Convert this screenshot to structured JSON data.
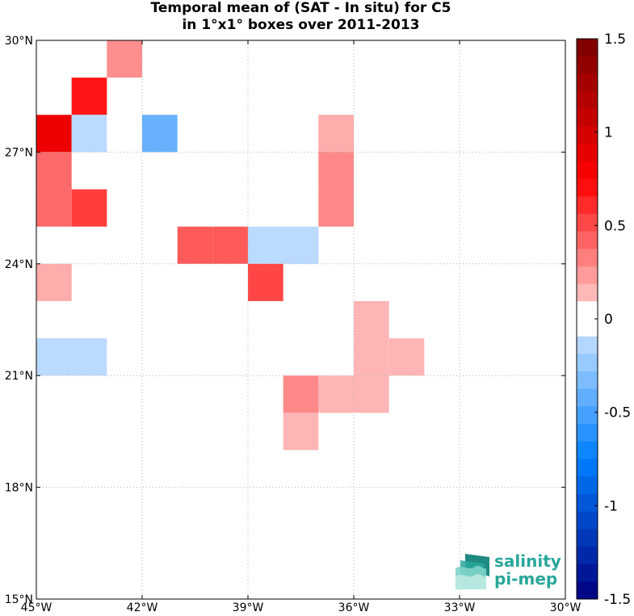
{
  "title": {
    "line1": "Temporal mean of (SAT - In situ) for C5",
    "line2": "in 1°x1° boxes over 2011-2013"
  },
  "logo": {
    "line1": "salinity",
    "line2": "pi-mep",
    "color": "#2aa79b"
  },
  "chart_data": {
    "type": "heatmap",
    "title": "Temporal mean of (SAT - In situ) for C5 in 1°x1° boxes over 2011-2013",
    "xlabel": "",
    "ylabel": "",
    "xlim": [
      -45,
      -30
    ],
    "ylim": [
      15,
      30
    ],
    "x_ticks": [
      {
        "value": -45,
        "label": "45°W"
      },
      {
        "value": -42,
        "label": "42°W"
      },
      {
        "value": -39,
        "label": "39°W"
      },
      {
        "value": -36,
        "label": "36°W"
      },
      {
        "value": -33,
        "label": "33°W"
      },
      {
        "value": -30,
        "label": "30°W"
      }
    ],
    "y_ticks": [
      {
        "value": 15,
        "label": "15°N"
      },
      {
        "value": 18,
        "label": "18°N"
      },
      {
        "value": 21,
        "label": "21°N"
      },
      {
        "value": 24,
        "label": "24°N"
      },
      {
        "value": 27,
        "label": "27°N"
      },
      {
        "value": 30,
        "label": "30°N"
      }
    ],
    "grid": true,
    "colorbar": {
      "range": [
        -1.5,
        1.5
      ],
      "levels": 32,
      "ticks": [
        {
          "value": 1.5,
          "label": "1.5"
        },
        {
          "value": 1,
          "label": "1"
        },
        {
          "value": 0.5,
          "label": "0.5"
        },
        {
          "value": 0,
          "label": "0"
        },
        {
          "value": -0.5,
          "label": "-0.5"
        },
        {
          "value": -1,
          "label": "-1"
        },
        {
          "value": -1.5,
          "label": "-1.5"
        }
      ]
    },
    "cells": [
      {
        "lon": -43,
        "lat": 29,
        "value": 0.28
      },
      {
        "lon": -44,
        "lat": 28,
        "value": 0.68
      },
      {
        "lon": -45,
        "lat": 27,
        "value": 0.85
      },
      {
        "lon": -44,
        "lat": 27,
        "value": -0.12
      },
      {
        "lon": -42,
        "lat": 27,
        "value": -0.4
      },
      {
        "lon": -37,
        "lat": 27,
        "value": 0.18
      },
      {
        "lon": -45,
        "lat": 26,
        "value": 0.4
      },
      {
        "lon": -37,
        "lat": 26,
        "value": 0.3
      },
      {
        "lon": -45,
        "lat": 25,
        "value": 0.4
      },
      {
        "lon": -44,
        "lat": 25,
        "value": 0.55
      },
      {
        "lon": -37,
        "lat": 25,
        "value": 0.3
      },
      {
        "lon": -41,
        "lat": 24,
        "value": 0.45
      },
      {
        "lon": -40,
        "lat": 24,
        "value": 0.45
      },
      {
        "lon": -39,
        "lat": 24,
        "value": -0.12
      },
      {
        "lon": -38,
        "lat": 24,
        "value": -0.12
      },
      {
        "lon": -45,
        "lat": 23,
        "value": 0.18
      },
      {
        "lon": -39,
        "lat": 23,
        "value": 0.52
      },
      {
        "lon": -36,
        "lat": 22,
        "value": 0.15
      },
      {
        "lon": -45,
        "lat": 21,
        "value": -0.12
      },
      {
        "lon": -44,
        "lat": 21,
        "value": -0.12
      },
      {
        "lon": -36,
        "lat": 21,
        "value": 0.15
      },
      {
        "lon": -35,
        "lat": 21,
        "value": 0.15
      },
      {
        "lon": -38,
        "lat": 20,
        "value": 0.3
      },
      {
        "lon": -37,
        "lat": 20,
        "value": 0.15
      },
      {
        "lon": -36,
        "lat": 20,
        "value": 0.15
      },
      {
        "lon": -38,
        "lat": 19,
        "value": 0.15
      }
    ]
  }
}
